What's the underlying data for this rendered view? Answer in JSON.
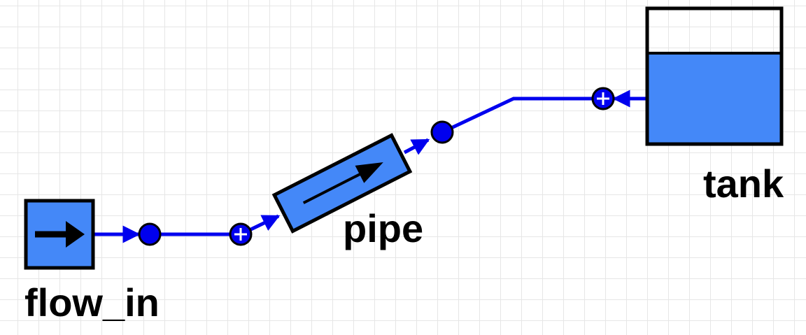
{
  "diagram": {
    "blocks": {
      "flow_in": {
        "label": "flow_in",
        "icon": "arrow-right-icon"
      },
      "pipe": {
        "label": "pipe",
        "icon": "arrow-right-icon"
      },
      "tank": {
        "label": "tank",
        "fill_level": 0.68
      }
    },
    "colors": {
      "connection": "#0000ee",
      "block_fill": "#4488f8",
      "block_border": "#000000",
      "port_plus_fill": "#0000ee",
      "port_node_fill": "#0000ee"
    }
  }
}
